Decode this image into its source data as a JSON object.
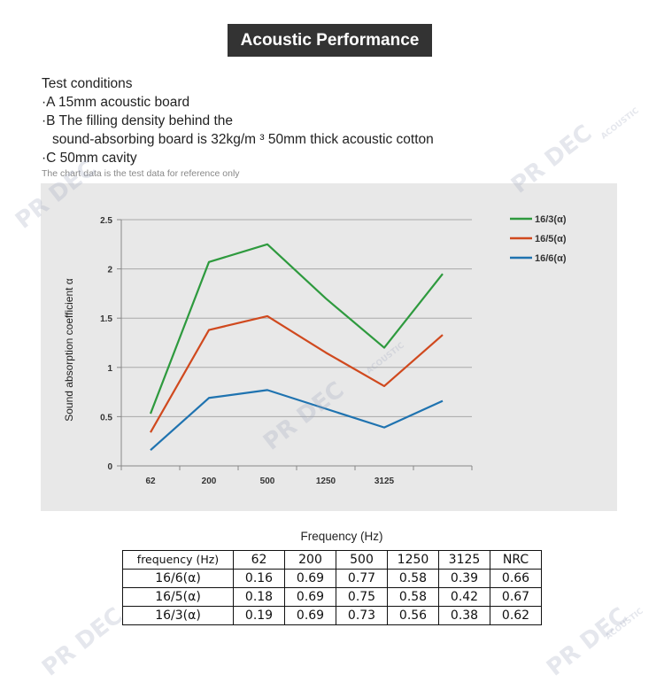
{
  "title": "Acoustic Performance",
  "conditions": {
    "heading": "Test conditions",
    "a": "·A 15mm acoustic board",
    "b1": "·B The filling density behind the",
    "b2": "sound-absorbing board is 32kg/m ³ 50mm thick acoustic cotton",
    "c": "·C 50mm cavity"
  },
  "note": "The chart data is the test data for reference only",
  "chart_data": {
    "type": "line",
    "ylabel": "Sound absorption coefficient  α",
    "xlabel": "Frequency (Hz)",
    "categories": [
      "62",
      "200",
      "500",
      "1250",
      "3125",
      ""
    ],
    "ylim": [
      0,
      2.5
    ],
    "yticks": [
      "0",
      "0.5",
      "1",
      "1.5",
      "2",
      "2.5"
    ],
    "grid": true,
    "legend_position": "top-right",
    "series": [
      {
        "name": "16/3(α)",
        "color": "#2e9a3e",
        "values": [
          0.53,
          2.07,
          2.25,
          1.7,
          1.2,
          1.95
        ]
      },
      {
        "name": "16/5(α)",
        "color": "#d0491e",
        "values": [
          0.34,
          1.38,
          1.52,
          1.15,
          0.81,
          1.33
        ]
      },
      {
        "name": "16/6(α)",
        "color": "#1f73b0",
        "values": [
          0.16,
          0.69,
          0.77,
          0.58,
          0.39,
          0.66
        ]
      }
    ]
  },
  "table": {
    "header": [
      "frequency (Hz)",
      "62",
      "200",
      "500",
      "1250",
      "3125",
      "NRC"
    ],
    "rows": [
      [
        "16/6(α)",
        "0.16",
        "0.69",
        "0.77",
        "0.58",
        "0.39",
        "0.66"
      ],
      [
        "16/5(α)",
        "0.18",
        "0.69",
        "0.75",
        "0.58",
        "0.42",
        "0.67"
      ],
      [
        "16/3(α)",
        "0.19",
        "0.69",
        "0.73",
        "0.56",
        "0.38",
        "0.62"
      ]
    ]
  },
  "watermark": "PR DEC",
  "watermark_sub": "ACOUSTIC"
}
